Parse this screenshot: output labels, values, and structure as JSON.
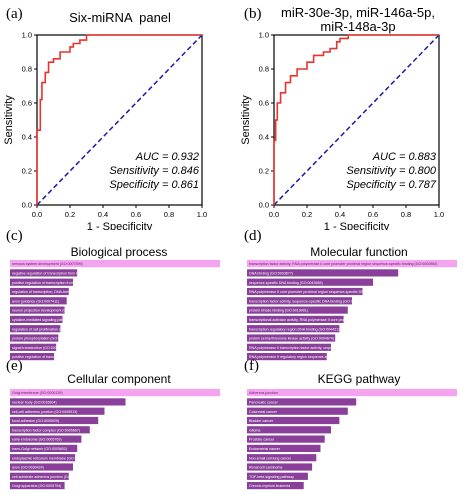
{
  "panels": [
    {
      "letter": "(a)",
      "title": "Six-miRNA  panel"
    },
    {
      "letter": "(b)",
      "title": "miR-30e-3p, miR-146a-5p,\nmiR-148a-3p"
    },
    {
      "letter": "(c)",
      "title": "Biological process"
    },
    {
      "letter": "(d)",
      "title": "Molecular function"
    },
    {
      "letter": "(e)",
      "title": "Cellular component"
    },
    {
      "letter": "(f)",
      "title": "KEGG pathway"
    }
  ],
  "colors": {
    "roc_curve": "#e8332e",
    "diagonal": "#1a1aa8",
    "bar_top": "#f5a3f0",
    "bar": "#8a3f9a",
    "bar_text": "#ffffff"
  },
  "chart_data": [
    {
      "type": "line",
      "title": "Six-miRNA  panel",
      "xlabel": "1 - Specificity",
      "ylabel": "Sensitivity",
      "xlim": [
        0,
        1.0
      ],
      "ylim": [
        0,
        1.0
      ],
      "xticks": [
        "0.0",
        "0.2",
        "0.4",
        "0.6",
        "0.8",
        "1.0"
      ],
      "yticks": [
        "0.0",
        "0.2",
        "0.4",
        "0.6",
        "0.8",
        "1.0"
      ],
      "series": [
        {
          "values": [
            [
              0,
              0
            ],
            [
              0,
              0.44
            ],
            [
              0.02,
              0.44
            ],
            [
              0.02,
              0.62
            ],
            [
              0.03,
              0.62
            ],
            [
              0.03,
              0.72
            ],
            [
              0.05,
              0.72
            ],
            [
              0.05,
              0.78
            ],
            [
              0.07,
              0.78
            ],
            [
              0.07,
              0.84
            ],
            [
              0.1,
              0.84
            ],
            [
              0.1,
              0.86
            ],
            [
              0.14,
              0.86
            ],
            [
              0.14,
              0.9
            ],
            [
              0.2,
              0.9
            ],
            [
              0.2,
              0.93
            ],
            [
              0.22,
              0.93
            ],
            [
              0.22,
              0.95
            ],
            [
              0.26,
              0.95
            ],
            [
              0.26,
              0.97
            ],
            [
              0.3,
              0.97
            ],
            [
              0.3,
              1.0
            ],
            [
              1.0,
              1.0
            ]
          ]
        },
        {
          "values": [
            [
              0,
              0
            ],
            [
              1,
              1
            ]
          ]
        }
      ],
      "annotations": [
        "AUC = 0.932",
        "Sensitivity = 0.846",
        "Specificity = 0.861"
      ]
    },
    {
      "type": "line",
      "title": "miR-30e-3p, miR-146a-5p, miR-148a-3p",
      "xlabel": "1 - Specificity",
      "ylabel": "Sensitivity",
      "xlim": [
        0,
        1.0
      ],
      "ylim": [
        0,
        1.0
      ],
      "xticks": [
        "0.0",
        "0.2",
        "0.4",
        "0.6",
        "0.8",
        "1.0"
      ],
      "yticks": [
        "0.0",
        "0.2",
        "0.4",
        "0.6",
        "0.8",
        "1.0"
      ],
      "series": [
        {
          "values": [
            [
              0,
              0
            ],
            [
              0,
              0.38
            ],
            [
              0.01,
              0.38
            ],
            [
              0.01,
              0.5
            ],
            [
              0.02,
              0.5
            ],
            [
              0.02,
              0.6
            ],
            [
              0.04,
              0.6
            ],
            [
              0.04,
              0.66
            ],
            [
              0.07,
              0.66
            ],
            [
              0.07,
              0.72
            ],
            [
              0.1,
              0.72
            ],
            [
              0.1,
              0.76
            ],
            [
              0.14,
              0.76
            ],
            [
              0.14,
              0.8
            ],
            [
              0.2,
              0.8
            ],
            [
              0.2,
              0.84
            ],
            [
              0.24,
              0.84
            ],
            [
              0.24,
              0.88
            ],
            [
              0.3,
              0.88
            ],
            [
              0.3,
              0.9
            ],
            [
              0.34,
              0.9
            ],
            [
              0.34,
              0.92
            ],
            [
              0.38,
              0.92
            ],
            [
              0.38,
              0.96
            ],
            [
              0.4,
              0.96
            ],
            [
              0.4,
              0.98
            ],
            [
              0.45,
              0.98
            ],
            [
              0.45,
              1.0
            ],
            [
              1.0,
              1.0
            ]
          ]
        },
        {
          "values": [
            [
              0,
              0
            ],
            [
              1,
              1
            ]
          ]
        }
      ],
      "annotations": [
        "AUC = 0.883",
        "Sensitivity = 0.800",
        "Specificity = 0.787"
      ]
    },
    {
      "type": "bar",
      "orientation": "horizontal",
      "title": "Biological process",
      "categories": [
        "nervous system development (GO:0007399)",
        "negative regulation of transcription from RNA polymerase II promoter (GO:0000122)",
        "positive regulation of transcription from RNA polymerase II promoter (GO:0045944)",
        "regulation of transcription, DNA-templated (GO:0006355)",
        "axon guidance (GO:0007411)",
        "neuron projection development (GO:0031175)",
        "cytokine-mediated signaling pathway (GO:0019221)",
        "regulation of cell proliferation (GO:0042127)",
        "protein phosphorylation (GO:0006468)",
        "signal transduction (GO:0007165)",
        "positive regulation of transcription, DNA-templated (GO:0045893)"
      ],
      "values": [
        100,
        32,
        30,
        28,
        27,
        26,
        25,
        24,
        23,
        22,
        21
      ]
    },
    {
      "type": "bar",
      "orientation": "horizontal",
      "title": "Molecular function",
      "categories": [
        "transcription factor activity, RNA polymerase II core promoter proximal region sequence-specific binding (GO:0000982)",
        "DNA binding (GO:0003677)",
        "sequence-specific DNA binding (GO:0043565)",
        "RNA polymerase II core promoter proximal region sequence-specific DNA binding (GO:0000978)",
        "transcription factor activity, sequence-specific DNA binding (GO:0003700)",
        "protein kinase binding (GO:0019901)",
        "transcriptional activator activity, RNA polymerase II core promoter proximal region sequence-specific binding (GO:0001077)",
        "transcription regulatory region DNA binding (GO:0044212)",
        "protein serine/threonine kinase activity (GO:0004674)",
        "RNA polymerase II transcription factor activity, sequence-specific DNA binding (GO:0000981)",
        "RNA polymerase II regulatory region sequence-specific DNA binding (GO:0000977)"
      ],
      "values": [
        100,
        72,
        60,
        55,
        50,
        48,
        46,
        44,
        42,
        40,
        38
      ]
    },
    {
      "type": "bar",
      "orientation": "horizontal",
      "title": "Cellular component",
      "categories": [
        "Golgi membrane (GO:0000139)",
        "nuclear body (GO:0016604)",
        "cell-cell adherens junction (GO:0005913)",
        "focal adhesion (GO:0005925)",
        "transcription factor complex (GO:0005667)",
        "early endosome (GO:0005769)",
        "trans-Golgi network (GO:0005802)",
        "endoplasmic reticulum membrane (GO:0005789)",
        "axon (GO:0030424)",
        "cell-substrate adherens junction (GO:0005924)",
        "Golgi apparatus (GO:0005794)"
      ],
      "values": [
        100,
        55,
        45,
        42,
        38,
        34,
        32,
        31,
        30,
        28,
        26
      ]
    },
    {
      "type": "bar",
      "orientation": "horizontal",
      "title": "KEGG pathway",
      "categories": [
        "Adherens junction",
        "Pancreatic cancer",
        "Colorectal cancer",
        "Bladder cancer",
        "Glioma",
        "Prostate cancer",
        "Endometrial cancer",
        "Non-small cell lung cancer",
        "Renal cell carcinoma",
        "TGF-beta signaling pathway",
        "Chronic myeloid leukemia"
      ],
      "values": [
        100,
        52,
        48,
        44,
        40,
        37,
        35,
        33,
        31,
        29,
        27
      ]
    }
  ]
}
